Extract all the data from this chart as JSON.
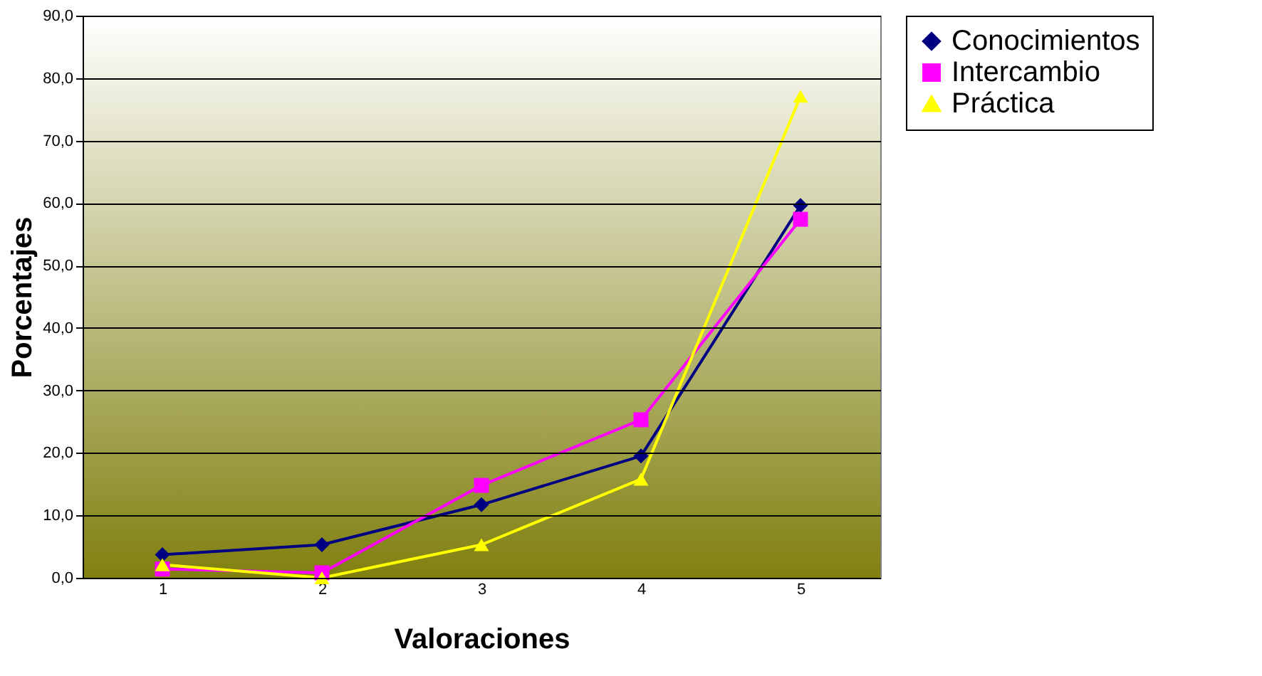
{
  "chart_data": {
    "type": "line",
    "xlabel": "Valoraciones",
    "ylabel": "Porcentajes",
    "categories": [
      "1",
      "2",
      "3",
      "4",
      "5"
    ],
    "series": [
      {
        "name": "Conocimientos",
        "color": "#000080",
        "marker": "diamond",
        "values": [
          3.7,
          5.3,
          11.7,
          19.5,
          59.6
        ]
      },
      {
        "name": "Intercambio",
        "color": "#ff00ff",
        "marker": "square",
        "values": [
          1.4,
          0.8,
          14.8,
          25.3,
          57.4
        ]
      },
      {
        "name": "Práctica",
        "color": "#ffff00",
        "marker": "triangle",
        "values": [
          2.1,
          0.0,
          5.3,
          15.8,
          77.1
        ]
      }
    ],
    "ylim": [
      0,
      90
    ],
    "yticks": [
      {
        "value": 0,
        "label": "0,0"
      },
      {
        "value": 10,
        "label": "10,0"
      },
      {
        "value": 20,
        "label": "20,0"
      },
      {
        "value": 30,
        "label": "30,0"
      },
      {
        "value": 40,
        "label": "40,0"
      },
      {
        "value": 50,
        "label": "50,0"
      },
      {
        "value": 60,
        "label": "60,0"
      },
      {
        "value": 70,
        "label": "70,0"
      },
      {
        "value": 80,
        "label": "80,0"
      },
      {
        "value": 90,
        "label": "90,0"
      }
    ],
    "grid": "y",
    "legend": "right"
  }
}
